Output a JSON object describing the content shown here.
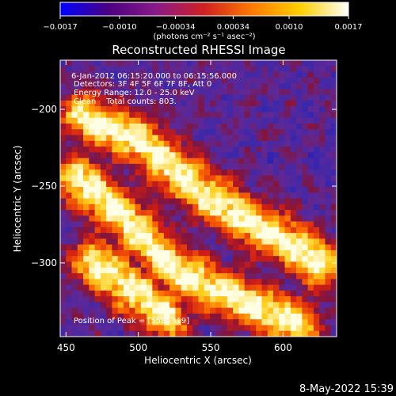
{
  "colorbar": {
    "tick_labels": [
      "−0.0017",
      "−0.0010",
      "−0.00034",
      "0.00034",
      "0.0010",
      "0.0017"
    ],
    "tick_values": [
      -0.0017,
      -0.001,
      -0.00034,
      0.00034,
      0.001,
      0.0017
    ],
    "range": [
      -0.0017,
      0.0017
    ],
    "unit_label": "(photons cm⁻² s⁻¹ asec⁻²)",
    "colors": [
      "#0000ff",
      "#4b0082",
      "#8a1a8a",
      "#d02020",
      "#ff7a00",
      "#ffd000",
      "#ffffff"
    ]
  },
  "chart_data": {
    "type": "heatmap",
    "title": "Reconstructed RHESSI Image",
    "xlabel": "Heliocentric X (arcsec)",
    "ylabel": "Heliocentric Y (arcsec)",
    "xlim": [
      446,
      637
    ],
    "ylim": [
      -348,
      -168
    ],
    "x_ticks": [
      450,
      500,
      550,
      600
    ],
    "y_ticks": [
      -200,
      -250,
      -300
    ],
    "x_tick_labels": [
      "450",
      "500",
      "550",
      "600"
    ],
    "y_tick_labels": [
      "−200",
      "−250",
      "−300"
    ],
    "annotations": {
      "line1": "6-Jan-2012 06:15:20.000 to 06:15:56.000",
      "line2": "Detectors: 3F 4F 5F 6F 7F 8F, Att 0",
      "line3": "Energy Range: 12.0 - 25.0 keV",
      "line4": "Clean    Total counts: 803.",
      "peak": "Position of Peak = [558,-319]"
    },
    "peak_position": [
      558,
      -319
    ],
    "bright_ridges": [
      {
        "points": [
          [
            462,
            -205
          ],
          [
            500,
            -220
          ],
          [
            525,
            -240
          ],
          [
            550,
            -258
          ],
          [
            580,
            -275
          ],
          [
            610,
            -290
          ],
          [
            625,
            -300
          ]
        ]
      },
      {
        "points": [
          [
            458,
            -245
          ],
          [
            490,
            -270
          ],
          [
            520,
            -300
          ],
          [
            545,
            -315
          ],
          [
            560,
            -320
          ],
          [
            585,
            -330
          ],
          [
            610,
            -340
          ]
        ]
      },
      {
        "points": [
          [
            470,
            -300
          ],
          [
            500,
            -320
          ],
          [
            520,
            -335
          ]
        ]
      }
    ]
  },
  "footer": {
    "date": "8-May-2022 15:39"
  }
}
